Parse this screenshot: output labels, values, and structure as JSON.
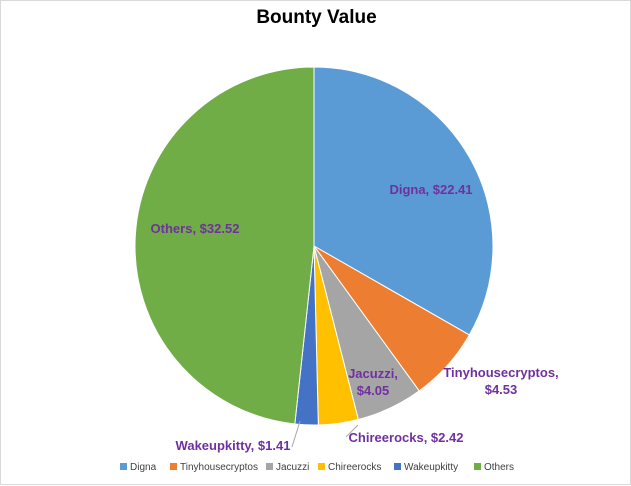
{
  "chart_data": {
    "type": "pie",
    "title": "Bounty Value",
    "slices": [
      {
        "label": "Digna",
        "value": 22.41,
        "display": "$22.41",
        "color": "#5b9bd5"
      },
      {
        "label": "Tinyhousecryptos",
        "value": 4.53,
        "display": "$4.53",
        "color": "#ed7d31"
      },
      {
        "label": "Jacuzzi",
        "value": 4.05,
        "display": "$4.05",
        "color": "#a5a5a5"
      },
      {
        "label": "Chireerocks",
        "value": 2.42,
        "display": "$2.42",
        "color": "#ffc000"
      },
      {
        "label": "Wakeupkitty",
        "value": 1.41,
        "display": "$1.41",
        "color": "#4472c4"
      },
      {
        "label": "Others",
        "value": 32.52,
        "display": "$32.52",
        "color": "#70ad47"
      }
    ],
    "legend_position": "bottom",
    "label_color": "#7030a0"
  }
}
